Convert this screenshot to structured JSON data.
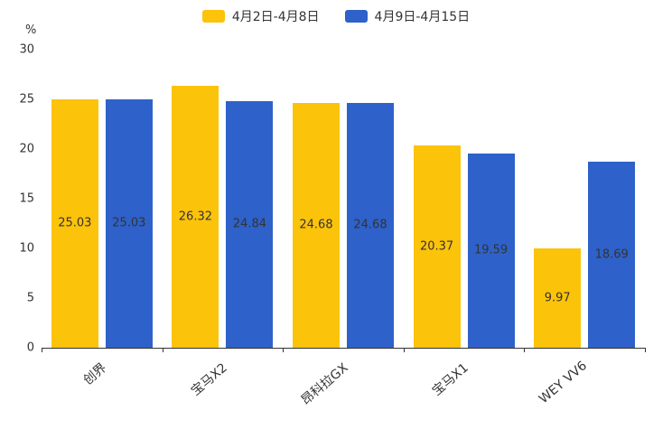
{
  "legend": [
    {
      "label": "4月2日-4月8日",
      "color": "#FCC30B"
    },
    {
      "label": "4月9日-4月15日",
      "color": "#2E61C9"
    }
  ],
  "y_axis": {
    "unit": "%",
    "ticks": [
      0,
      5,
      10,
      15,
      20,
      25,
      30
    ],
    "max": 30
  },
  "chart_data": {
    "type": "bar",
    "title": "",
    "categories": [
      "创界",
      "宝马X2",
      "昂科拉GX",
      "宝马X1",
      "WEY VV6"
    ],
    "series": [
      {
        "name": "4月2日-4月8日",
        "color": "#FCC30B",
        "values": [
          25.03,
          26.32,
          24.68,
          20.37,
          9.97
        ]
      },
      {
        "name": "4月9日-4月15日",
        "color": "#2E61C9",
        "values": [
          25.03,
          24.84,
          24.68,
          19.59,
          18.69
        ]
      }
    ],
    "xlabel": "",
    "ylabel": "%",
    "ylim": [
      0,
      30
    ],
    "grid": false,
    "legend_position": "top"
  }
}
